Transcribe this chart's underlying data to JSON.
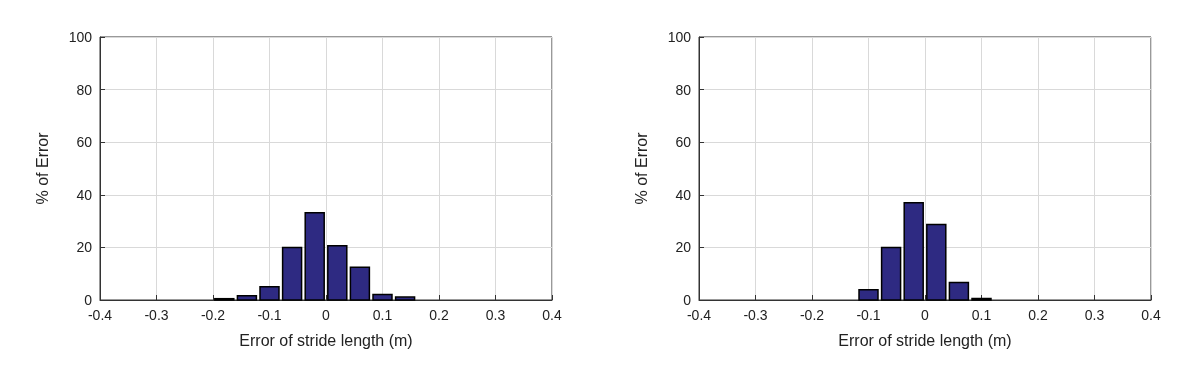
{
  "chart_data": [
    {
      "type": "histogram",
      "xlabel": "Error of stride length (m)",
      "ylabel": "% of Error",
      "color": "#2e2a82",
      "bins": [
        -0.2,
        -0.16,
        -0.12,
        -0.08,
        -0.04,
        0,
        0.04,
        0.08,
        0.12,
        0.16,
        0.2
      ],
      "values": [
        0.5,
        1.6,
        5,
        20,
        33.2,
        20.6,
        12.5,
        2.1,
        1.1,
        0
      ],
      "xlim": [
        -0.4,
        0.4
      ],
      "xticks": [
        -0.4,
        -0.3,
        -0.2,
        -0.1,
        0,
        0.1,
        0.2,
        0.3,
        0.4
      ],
      "ylim": [
        0,
        100
      ],
      "yticks": [
        0,
        20,
        40,
        60,
        80,
        100
      ],
      "grid": true
    },
    {
      "type": "histogram",
      "xlabel": "Error of stride length (m)",
      "ylabel": "% of Error",
      "color": "#2e2a82",
      "bins": [
        -0.2,
        -0.16,
        -0.12,
        -0.08,
        -0.04,
        0,
        0.04,
        0.08,
        0.12,
        0.16,
        0.2
      ],
      "values": [
        0,
        0,
        3.9,
        20,
        37,
        28.7,
        6.7,
        0.6,
        0,
        0
      ],
      "xlim": [
        -0.4,
        0.4
      ],
      "xticks": [
        -0.4,
        -0.3,
        -0.2,
        -0.1,
        0,
        0.1,
        0.2,
        0.3,
        0.4
      ],
      "ylim": [
        0,
        100
      ],
      "yticks": [
        0,
        20,
        40,
        60,
        80,
        100
      ],
      "grid": true
    }
  ]
}
